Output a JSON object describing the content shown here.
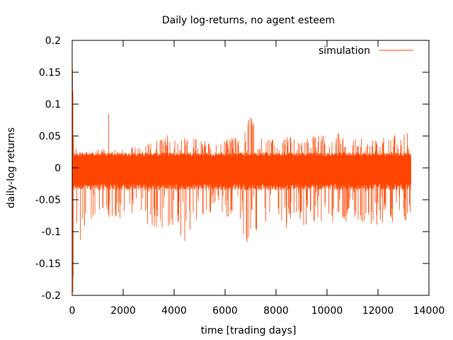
{
  "chart_data": {
    "type": "line",
    "title": "Daily log-returns, no agent esteem",
    "xlabel": "time [trading days]",
    "ylabel": "daily-log returns",
    "xlim": [
      0,
      14000
    ],
    "ylim": [
      -0.2,
      0.2
    ],
    "x_ticks": [
      "0",
      "2000",
      "4000",
      "6000",
      "8000",
      "10000",
      "12000",
      "14000"
    ],
    "y_ticks": [
      "-0.2",
      "-0.15",
      "-0.1",
      "-0.05",
      "0",
      "0.05",
      "0.1",
      "0.15",
      "0.2"
    ],
    "legend": "top-right",
    "grid": false,
    "series": [
      {
        "name": "simulation",
        "color": "#ff4500",
        "x_range": [
          0,
          13300
        ],
        "upper_envelope": [
          [
            0,
            0.2
          ],
          [
            60,
            0.05
          ],
          [
            200,
            0.025
          ],
          [
            600,
            0.025
          ],
          [
            1000,
            0.028
          ],
          [
            1300,
            0.035
          ],
          [
            1380,
            0.098
          ],
          [
            1450,
            0.09
          ],
          [
            1500,
            0.03
          ],
          [
            2000,
            0.03
          ],
          [
            2500,
            0.035
          ],
          [
            3000,
            0.04
          ],
          [
            3500,
            0.06
          ],
          [
            4000,
            0.045
          ],
          [
            4500,
            0.05
          ],
          [
            5000,
            0.045
          ],
          [
            5500,
            0.04
          ],
          [
            6000,
            0.045
          ],
          [
            6400,
            0.05
          ],
          [
            6800,
            0.07
          ],
          [
            7000,
            0.082
          ],
          [
            7200,
            0.06
          ],
          [
            7500,
            0.045
          ],
          [
            8000,
            0.045
          ],
          [
            8500,
            0.05
          ],
          [
            9000,
            0.045
          ],
          [
            9500,
            0.05
          ],
          [
            10000,
            0.052
          ],
          [
            10500,
            0.06
          ],
          [
            11000,
            0.045
          ],
          [
            11500,
            0.05
          ],
          [
            12000,
            0.045
          ],
          [
            12500,
            0.05
          ],
          [
            13000,
            0.055
          ],
          [
            13300,
            0.055
          ]
        ],
        "lower_envelope": [
          [
            0,
            -0.19
          ],
          [
            100,
            -0.195
          ],
          [
            200,
            -0.14
          ],
          [
            400,
            -0.1
          ],
          [
            800,
            -0.08
          ],
          [
            1200,
            -0.07
          ],
          [
            1500,
            -0.08
          ],
          [
            2000,
            -0.08
          ],
          [
            2500,
            -0.07
          ],
          [
            3000,
            -0.09
          ],
          [
            3500,
            -0.1
          ],
          [
            4000,
            -0.09
          ],
          [
            4500,
            -0.12
          ],
          [
            5000,
            -0.08
          ],
          [
            5500,
            -0.07
          ],
          [
            6000,
            -0.08
          ],
          [
            6500,
            -0.09
          ],
          [
            6800,
            -0.13
          ],
          [
            7000,
            -0.135
          ],
          [
            7200,
            -0.1
          ],
          [
            7500,
            -0.09
          ],
          [
            8000,
            -0.08
          ],
          [
            8500,
            -0.1
          ],
          [
            9000,
            -0.09
          ],
          [
            9500,
            -0.09
          ],
          [
            10000,
            -0.085
          ],
          [
            10500,
            -0.09
          ],
          [
            11000,
            -0.08
          ],
          [
            11500,
            -0.09
          ],
          [
            12000,
            -0.09
          ],
          [
            12500,
            -0.085
          ],
          [
            13000,
            -0.09
          ],
          [
            13300,
            -0.075
          ]
        ]
      }
    ]
  }
}
